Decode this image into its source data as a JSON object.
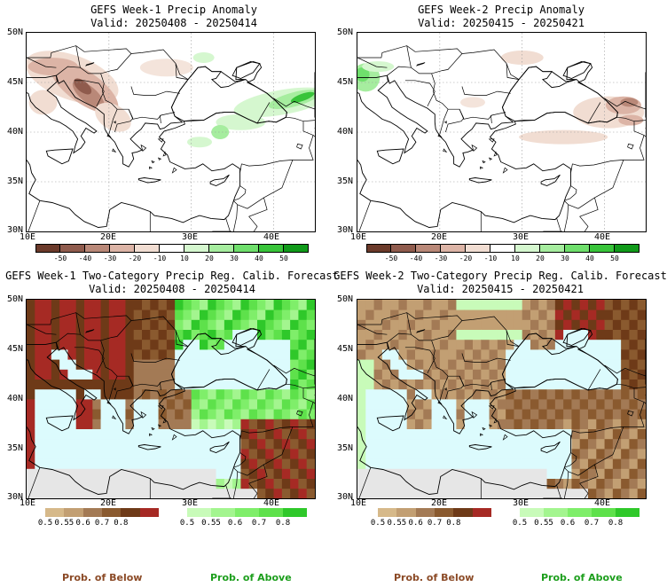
{
  "panels": [
    {
      "title": "GEFS Week-1 Precip Anomaly",
      "valid": "Valid: 20250408 - 20250414",
      "lat_labels": [
        "50N",
        "45N",
        "40N",
        "35N",
        "30N"
      ],
      "lon_labels": [
        "10E",
        "20E",
        "30E",
        "40E"
      ],
      "colorbar": {
        "colors": [
          "#6b3a2a",
          "#8f5b4d",
          "#b98878",
          "#dcb4a6",
          "#f1ddd2",
          "#ffffff",
          "#d5f7cf",
          "#a6ed9f",
          "#6fdf6c",
          "#38c43a",
          "#109a1a"
        ],
        "labels": [
          "-50",
          "-40",
          "-30",
          "-20",
          "-10",
          "10",
          "20",
          "30",
          "40",
          "50"
        ]
      }
    },
    {
      "title": "GEFS Week-2 Precip Anomaly",
      "valid": "Valid: 20250415 - 20250421",
      "lat_labels": [
        "50N",
        "45N",
        "40N",
        "35N",
        "30N"
      ],
      "lon_labels": [
        "10E",
        "20E",
        "30E",
        "40E"
      ],
      "colorbar": {
        "colors": [
          "#6b3a2a",
          "#8f5b4d",
          "#b98878",
          "#dcb4a6",
          "#f1ddd2",
          "#ffffff",
          "#d5f7cf",
          "#a6ed9f",
          "#6fdf6c",
          "#38c43a",
          "#109a1a"
        ],
        "labels": [
          "-50",
          "-40",
          "-30",
          "-20",
          "-10",
          "10",
          "20",
          "30",
          "40",
          "50"
        ]
      }
    },
    {
      "title": "GEFS Week-1 Two-Category Precip Reg. Calib. Forecast",
      "valid": "Valid: 20250408 - 20250414",
      "lat_labels": [
        "50N",
        "45N",
        "40N",
        "35N",
        "30N"
      ],
      "lon_labels": [
        "10E",
        "20E",
        "30E",
        "40E"
      ],
      "below_bar": {
        "colors": [
          "#d6b98a",
          "#c29f73",
          "#a37a55",
          "#8a5a2f",
          "#6e3a18",
          "#a62a24"
        ],
        "labels": [
          "0.5",
          "0.55",
          "0.6",
          "0.7",
          "0.8"
        ]
      },
      "above_bar": {
        "colors": [
          "#c8fbb9",
          "#a3f58f",
          "#7fee6a",
          "#5ee14b",
          "#2fc82a"
        ],
        "labels": [
          "0.5",
          "0.55",
          "0.6",
          "0.7",
          "0.8"
        ]
      }
    },
    {
      "title": "GEFS Week-2 Two-Category Precip Reg. Calib. Forecast",
      "valid": "Valid: 20250415 - 20250421",
      "lat_labels": [
        "50N",
        "45N",
        "40N",
        "35N",
        "30N"
      ],
      "lon_labels": [
        "10E",
        "20E",
        "30E",
        "40E"
      ],
      "below_bar": {
        "colors": [
          "#d6b98a",
          "#c29f73",
          "#a37a55",
          "#8a5a2f",
          "#6e3a18",
          "#a62a24"
        ],
        "labels": [
          "0.5",
          "0.55",
          "0.6",
          "0.7",
          "0.8"
        ]
      },
      "above_bar": {
        "colors": [
          "#c8fbb9",
          "#a3f58f",
          "#7fee6a",
          "#5ee14b",
          "#2fc82a"
        ],
        "labels": [
          "0.5",
          "0.55",
          "0.6",
          "0.7",
          "0.8"
        ]
      }
    }
  ],
  "footer": {
    "below_label": "Prob. of Below",
    "above_label": "Prob. of Above",
    "below_color": "#8b4a26",
    "above_color": "#1c9e1c"
  },
  "map_colors": {
    "sea": "#dcfbfd",
    "outside": "#e6e6e6",
    "coast": "#000000",
    "grid": "#999999"
  }
}
